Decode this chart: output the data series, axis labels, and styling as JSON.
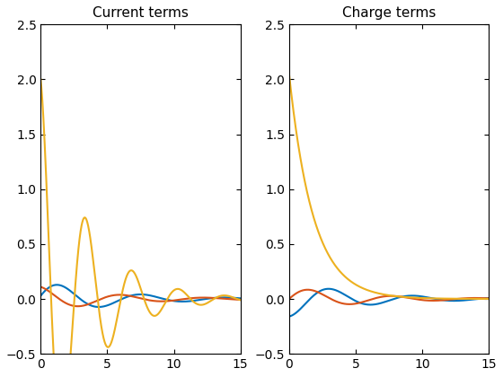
{
  "title1": "Current terms",
  "title2": "Charge terms",
  "xlim": [
    0,
    15
  ],
  "ylim": [
    -0.5,
    2.5
  ],
  "color_blue": "#0072BD",
  "color_orange": "#D95319",
  "color_yellow": "#EDB120",
  "line_width": 1.5,
  "figsize": [
    5.6,
    4.2
  ],
  "dpi": 100,
  "alpha_damp": 0.18,
  "omega": 1.0,
  "alpha_yellow_charge": 0.55,
  "q_yellow_amp": 2.05,
  "q_blue_amp": -0.16,
  "q_red_amp": 0.11
}
